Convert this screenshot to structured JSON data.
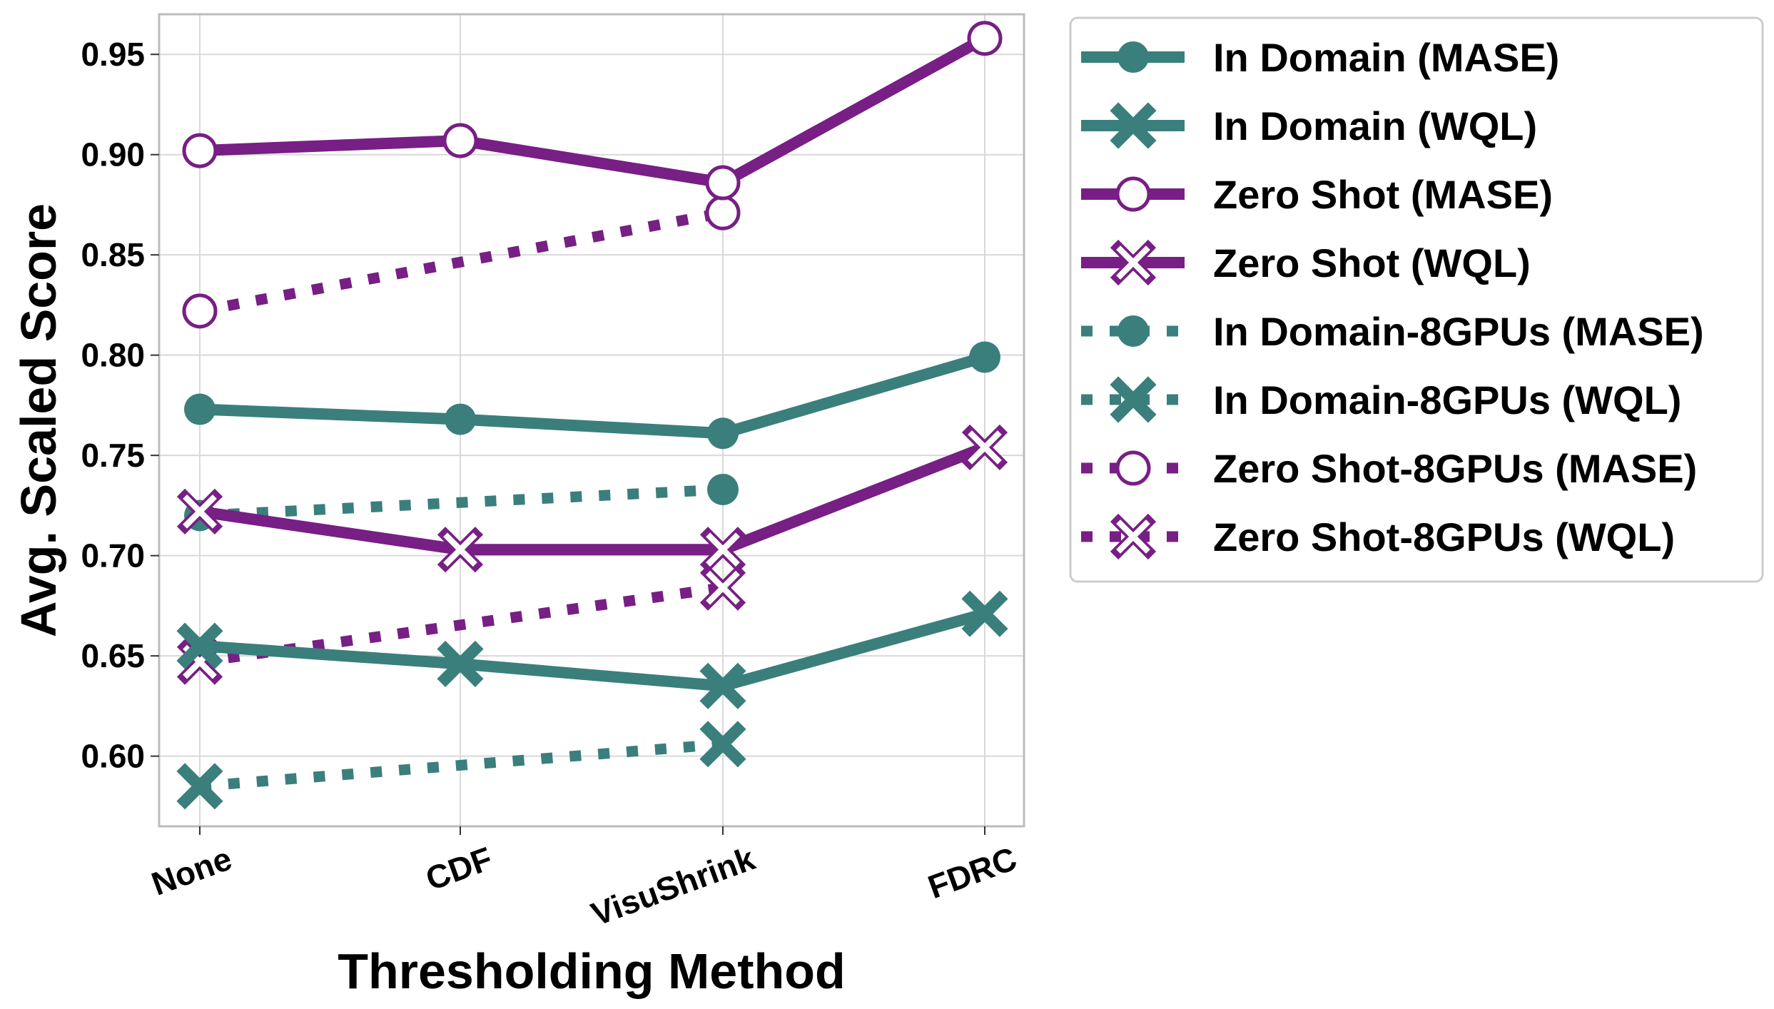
{
  "chart_data": {
    "type": "line",
    "xlabel": "Thresholding Method",
    "ylabel": "Avg. Scaled Score",
    "categories": [
      "None",
      "CDF",
      "VisuShrink",
      "FDRC"
    ],
    "ylim": [
      0.565,
      0.97
    ],
    "yticks": [
      0.6,
      0.65,
      0.7,
      0.75,
      0.8,
      0.85,
      0.9,
      0.95
    ],
    "ytick_labels": [
      "0.60",
      "0.65",
      "0.70",
      "0.75",
      "0.80",
      "0.85",
      "0.90",
      "0.95"
    ],
    "grid": true,
    "legend_position": "outside-right",
    "colors": {
      "in_domain": "#3a7f7c",
      "zero_shot": "#771f84"
    },
    "series": [
      {
        "name": "In Domain (MASE)",
        "color": "#3a7f7c",
        "style": "solid",
        "marker": "filled-circle",
        "values": [
          0.773,
          0.768,
          0.761,
          0.799
        ]
      },
      {
        "name": "In Domain (WQL)",
        "color": "#3a7f7c",
        "style": "solid",
        "marker": "filled-x",
        "values": [
          0.655,
          0.646,
          0.635,
          0.671
        ]
      },
      {
        "name": "Zero Shot (MASE)",
        "color": "#771f84",
        "style": "solid",
        "marker": "open-circle",
        "values": [
          0.902,
          0.907,
          0.886,
          0.958
        ]
      },
      {
        "name": "Zero Shot (WQL)",
        "color": "#771f84",
        "style": "solid",
        "marker": "open-x",
        "values": [
          0.722,
          0.703,
          0.703,
          0.754
        ]
      },
      {
        "name": "In Domain-8GPUs (MASE)",
        "color": "#3a7f7c",
        "style": "dotted",
        "marker": "filled-circle",
        "values": [
          0.72,
          null,
          0.733,
          null
        ]
      },
      {
        "name": "In Domain-8GPUs (WQL)",
        "color": "#3a7f7c",
        "style": "dotted",
        "marker": "filled-x",
        "values": [
          0.585,
          null,
          0.606,
          null
        ]
      },
      {
        "name": "Zero Shot-8GPUs (MASE)",
        "color": "#771f84",
        "style": "dotted",
        "marker": "open-circle",
        "values": [
          0.822,
          null,
          0.871,
          null
        ]
      },
      {
        "name": "Zero Shot-8GPUs (WQL)",
        "color": "#771f84",
        "style": "dotted",
        "marker": "open-x",
        "values": [
          0.647,
          null,
          0.684,
          null
        ]
      }
    ]
  }
}
